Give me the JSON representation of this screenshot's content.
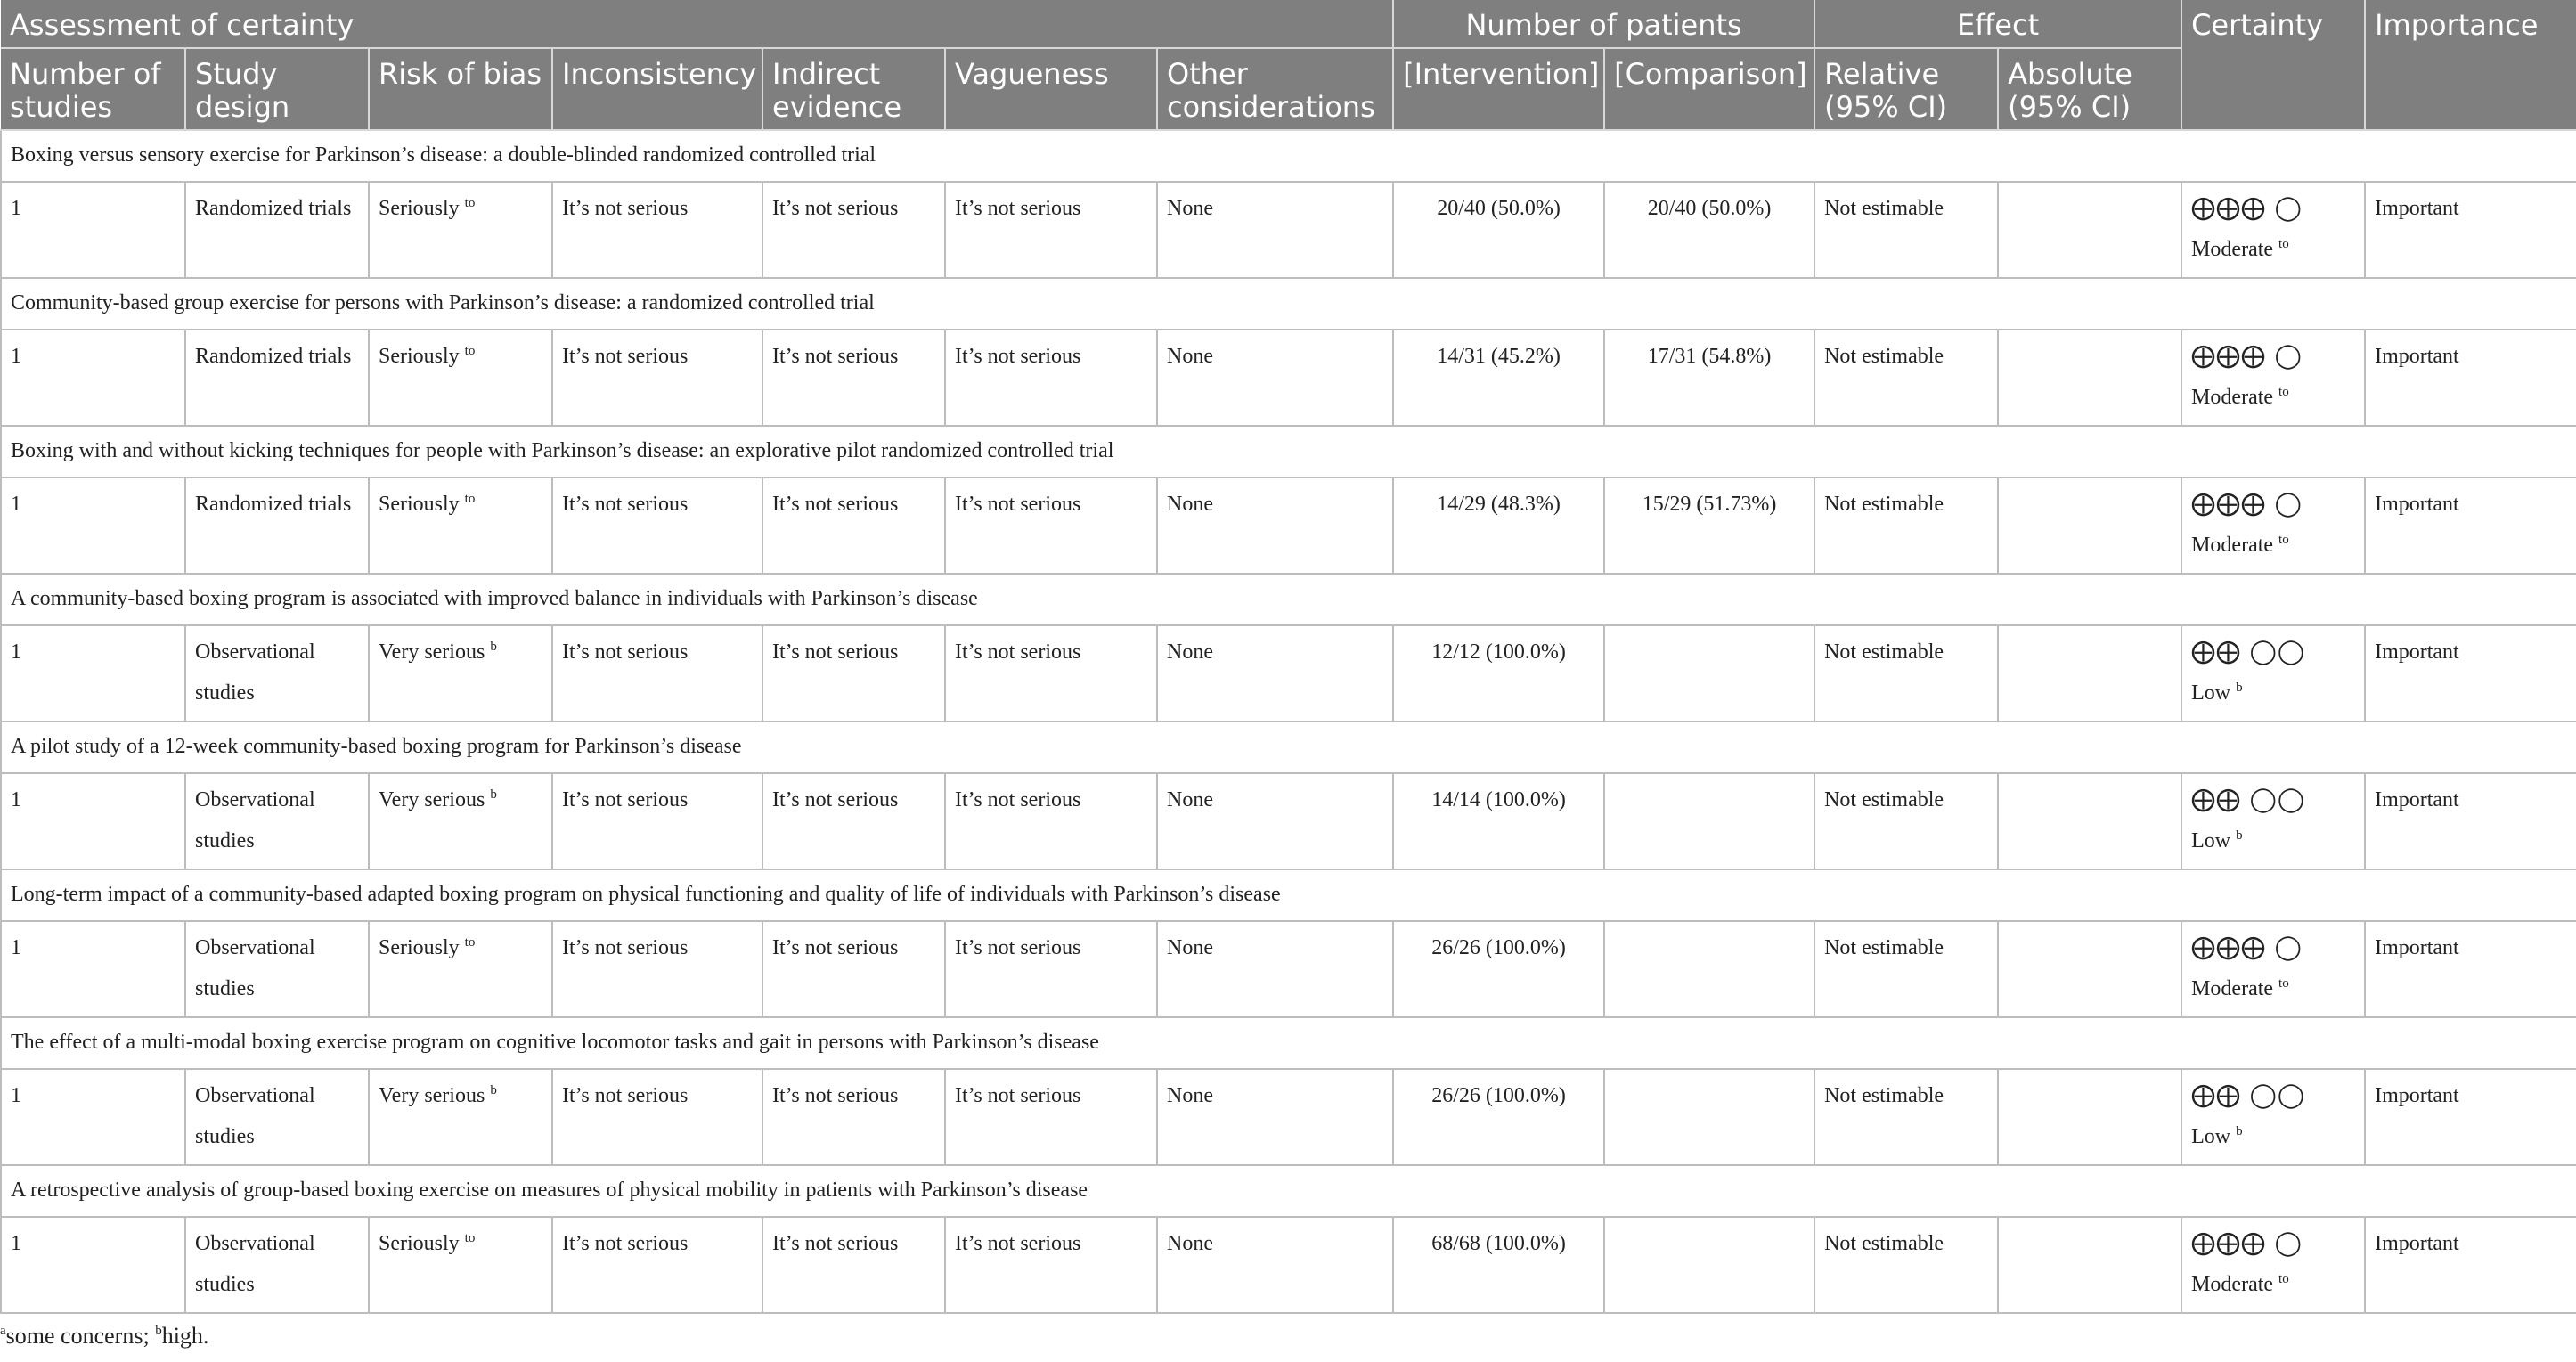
{
  "header": {
    "group_assessment": "Assessment of certainty",
    "group_patients": "Number of patients",
    "group_effect": "Effect",
    "certainty": "Certainty",
    "importance": "Importance",
    "number_of_studies": "Number of studies",
    "study_design": "Study design",
    "risk_of_bias": "Risk of bias",
    "inconsistency": "Inconsistency",
    "indirect_evidence": "Indirect evidence",
    "vagueness": "Vagueness",
    "other_considerations": "Other considerations",
    "intervention": "[Intervention]",
    "comparison": "[Comparison]",
    "relative": "Relative (95% CI)",
    "absolute": "Absolute (95% CI)"
  },
  "studies": [
    {
      "title": "Boxing versus sensory exercise for Parkinson’s disease: a double-blinded randomized controlled trial",
      "n": "1",
      "design": "Randomized trials",
      "bias": "Seriously",
      "bias_sup": "to",
      "inconsistency": "It’s not serious",
      "indirect": "It’s not serious",
      "vagueness": "It’s not serious",
      "other": "None",
      "intervention": "20/40 (50.0%)",
      "comparison": "20/40 (50.0%)",
      "relative": "Not estimable",
      "absolute": "",
      "cert_symbols": "⨁⨁⨁ ◯",
      "cert_label": "Moderate",
      "cert_sup": "to",
      "importance": "Important"
    },
    {
      "title": "Community-based group exercise for persons with Parkinson’s disease: a randomized controlled trial",
      "n": "1",
      "design": "Randomized trials",
      "bias": "Seriously",
      "bias_sup": "to",
      "inconsistency": "It’s not serious",
      "indirect": "It’s not serious",
      "vagueness": "It’s not serious",
      "other": "None",
      "intervention": "14/31 (45.2%)",
      "comparison": "17/31 (54.8%)",
      "relative": "Not estimable",
      "absolute": "",
      "cert_symbols": "⨁⨁⨁ ◯",
      "cert_label": "Moderate",
      "cert_sup": "to",
      "importance": "Important"
    },
    {
      "title": "Boxing with and without kicking techniques for people with Parkinson’s disease: an explorative pilot randomized controlled trial",
      "n": "1",
      "design": "Randomized trials",
      "bias": "Seriously",
      "bias_sup": "to",
      "inconsistency": "It’s not serious",
      "indirect": "It’s not serious",
      "vagueness": "It’s not serious",
      "other": "None",
      "intervention": "14/29 (48.3%)",
      "comparison": "15/29 (51.73%)",
      "relative": "Not estimable",
      "absolute": "",
      "cert_symbols": "⨁⨁⨁ ◯",
      "cert_label": "Moderate",
      "cert_sup": "to",
      "importance": "Important"
    },
    {
      "title": "A community-based boxing program is associated with improved balance in individuals with Parkinson’s disease",
      "n": "1",
      "design": "Observational studies",
      "bias": "Very serious",
      "bias_sup": "b",
      "inconsistency": "It’s not serious",
      "indirect": "It’s not serious",
      "vagueness": "It’s not serious",
      "other": "None",
      "intervention": "12/12 (100.0%)",
      "comparison": "",
      "relative": "Not estimable",
      "absolute": "",
      "cert_symbols": "⨁⨁ ◯◯",
      "cert_label": "Low",
      "cert_sup": "b",
      "importance": "Important"
    },
    {
      "title": "A pilot study of a 12-week community-based boxing program for Parkinson’s disease",
      "n": "1",
      "design": "Observational studies",
      "bias": "Very serious",
      "bias_sup": "b",
      "inconsistency": "It’s not serious",
      "indirect": "It’s not serious",
      "vagueness": "It’s not serious",
      "other": "None",
      "intervention": "14/14 (100.0%)",
      "comparison": "",
      "relative": "Not estimable",
      "absolute": "",
      "cert_symbols": "⨁⨁ ◯◯",
      "cert_label": "Low",
      "cert_sup": "b",
      "importance": "Important"
    },
    {
      "title": "Long-term impact of a community-based adapted boxing program on physical functioning and quality of life of individuals with Parkinson’s disease",
      "n": "1",
      "design": "Observational studies",
      "bias": "Seriously",
      "bias_sup": "to",
      "inconsistency": "It’s not serious",
      "indirect": "It’s not serious",
      "vagueness": "It’s not serious",
      "other": "None",
      "intervention": "26/26 (100.0%)",
      "comparison": "",
      "relative": "Not estimable",
      "absolute": "",
      "cert_symbols": "⨁⨁⨁ ◯",
      "cert_label": "Moderate",
      "cert_sup": "to",
      "importance": "Important"
    },
    {
      "title": "The effect of a multi-modal boxing exercise program on cognitive locomotor tasks and gait in persons with Parkinson’s disease",
      "n": "1",
      "design": "Observational studies",
      "bias": "Very serious",
      "bias_sup": "b",
      "inconsistency": "It’s not serious",
      "indirect": "It’s not serious",
      "vagueness": "It’s not serious",
      "other": "None",
      "intervention": "26/26 (100.0%)",
      "comparison": "",
      "relative": "Not estimable",
      "absolute": "",
      "cert_symbols": "⨁⨁ ◯◯",
      "cert_label": "Low",
      "cert_sup": "b",
      "importance": "Important"
    },
    {
      "title": "A retrospective analysis of group-based boxing exercise on measures of physical mobility in patients with Parkinson’s disease",
      "n": "1",
      "design": "Observational studies",
      "bias": "Seriously",
      "bias_sup": "to",
      "inconsistency": "It’s not serious",
      "indirect": "It’s not serious",
      "vagueness": "It’s not serious",
      "other": "None",
      "intervention": "68/68 (100.0%)",
      "comparison": "",
      "relative": "Not estimable",
      "absolute": "",
      "cert_symbols": "⨁⨁⨁ ◯",
      "cert_label": "Moderate",
      "cert_sup": "to",
      "importance": "Important"
    }
  ],
  "footnote": {
    "a_mark": "a",
    "a_text": "some concerns; ",
    "b_mark": "b",
    "b_text": "high."
  }
}
